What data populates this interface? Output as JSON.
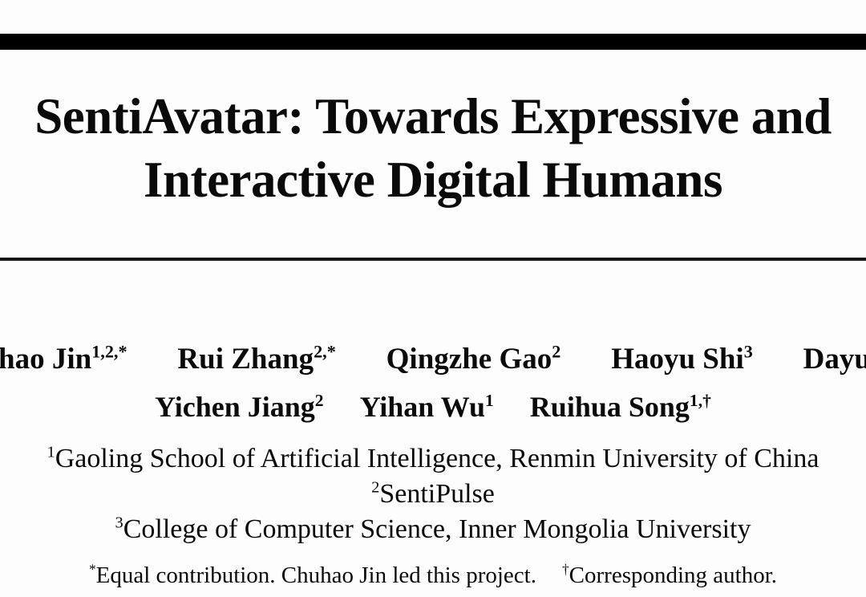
{
  "colors": {
    "background": "#fdfdfd",
    "text": "#0a0a0a",
    "bar": "#000000",
    "rule": "#161616"
  },
  "title": {
    "line1": "SentiAvatar: Towards Expressive and",
    "line2": "Interactive Digital Humans"
  },
  "authors": {
    "row1": [
      {
        "name": "hao Jin",
        "sup": "1,2,*"
      },
      {
        "name": "Rui Zhang",
        "sup": "2,*"
      },
      {
        "name": "Qingzhe Gao",
        "sup": "2"
      },
      {
        "name": "Haoyu Shi",
        "sup": "3"
      },
      {
        "name": "Dayu",
        "sup": ""
      }
    ],
    "row2": [
      {
        "name": "Yichen Jiang",
        "sup": "2"
      },
      {
        "name": "Yihan Wu",
        "sup": "1"
      },
      {
        "name": "Ruihua Song",
        "sup": "1,†"
      }
    ]
  },
  "affiliations": [
    {
      "sup": "1",
      "text": "Gaoling School of Artificial Intelligence, Renmin University of China"
    },
    {
      "sup": "2",
      "text": "SentiPulse"
    },
    {
      "sup": "3",
      "text": "College of Computer Science, Inner Mongolia University"
    }
  ],
  "footnotes": [
    {
      "sup": "*",
      "text": "Equal contribution. Chuhao Jin led this project."
    },
    {
      "sup": "†",
      "text": "Corresponding author."
    }
  ]
}
